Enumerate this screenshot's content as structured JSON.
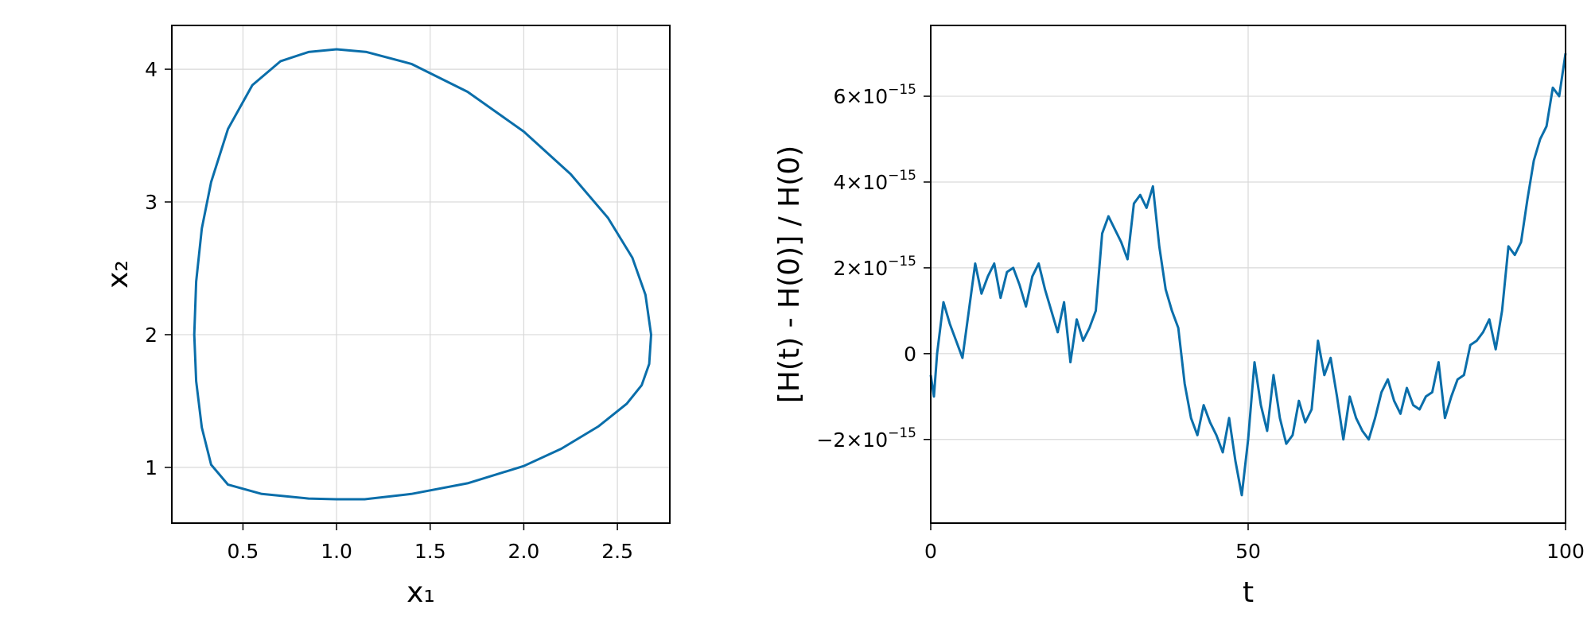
{
  "colors": {
    "series": "#0a6eaa",
    "grid": "#d9d9d9",
    "frame": "#000000"
  },
  "chart_data": [
    {
      "type": "line",
      "title": "",
      "xlabel": "x₁",
      "ylabel": "x₂",
      "xlim": [
        0.12,
        2.78
      ],
      "ylim": [
        0.58,
        4.33
      ],
      "grid": true,
      "xticks": [
        0.5,
        1.0,
        1.5,
        2.0,
        2.5
      ],
      "xtick_labels": [
        "0.5",
        "1.0",
        "1.5",
        "2.0",
        "2.5"
      ],
      "yticks": [
        1,
        2,
        3,
        4
      ],
      "ytick_labels": [
        "1",
        "2",
        "3",
        "4"
      ],
      "series": [
        {
          "x": [
            1.0,
            1.16,
            1.4,
            1.7,
            2.0,
            2.25,
            2.45,
            2.58,
            2.65,
            2.68,
            2.67,
            2.63,
            2.55,
            2.4,
            2.2,
            2.0,
            1.7,
            1.4,
            1.15,
            1.0,
            0.85,
            0.6,
            0.42,
            0.33,
            0.28,
            0.25,
            0.24,
            0.25,
            0.28,
            0.33,
            0.42,
            0.55,
            0.7,
            0.85,
            1.0
          ],
          "y": [
            4.15,
            4.13,
            4.04,
            3.83,
            3.53,
            3.21,
            2.88,
            2.58,
            2.3,
            2.0,
            1.78,
            1.62,
            1.48,
            1.31,
            1.14,
            1.01,
            0.88,
            0.8,
            0.76,
            0.76,
            0.765,
            0.8,
            0.87,
            1.02,
            1.3,
            1.65,
            2.0,
            2.4,
            2.8,
            3.15,
            3.55,
            3.88,
            4.06,
            4.13,
            4.15
          ]
        }
      ]
    },
    {
      "type": "line",
      "title": "",
      "xlabel": "t",
      "ylabel": "[H(t) - H(0)] / H(0)",
      "xlim": [
        0,
        100
      ],
      "ylim": [
        -3.95e-15,
        7.65e-15
      ],
      "grid": true,
      "xticks": [
        0,
        50,
        100
      ],
      "xtick_labels": [
        "0",
        "50",
        "100"
      ],
      "yticks": [
        -2e-15,
        0,
        2e-15,
        4e-15,
        6e-15
      ],
      "ytick_labels": [
        {
          "mantissa": "−2×10",
          "exponent": "−15"
        },
        {
          "mantissa": "0",
          "exponent": ""
        },
        {
          "mantissa": "2×10",
          "exponent": "−15"
        },
        {
          "mantissa": "4×10",
          "exponent": "−15"
        },
        {
          "mantissa": "6×10",
          "exponent": "−15"
        }
      ],
      "series": [
        {
          "x": [
            0,
            0.5,
            1,
            2,
            3,
            4,
            5,
            6,
            7,
            8,
            9,
            10,
            11,
            12,
            13,
            14,
            15,
            16,
            17,
            18,
            19,
            20,
            21,
            22,
            23,
            24,
            25,
            26,
            27,
            28,
            29,
            30,
            31,
            32,
            33,
            34,
            35,
            36,
            37,
            38,
            39,
            40,
            41,
            42,
            43,
            44,
            45,
            46,
            47,
            48,
            49,
            50,
            51,
            52,
            53,
            54,
            55,
            56,
            57,
            58,
            59,
            60,
            61,
            62,
            63,
            64,
            65,
            66,
            67,
            68,
            69,
            70,
            71,
            72,
            73,
            74,
            75,
            76,
            77,
            78,
            79,
            80,
            81,
            82,
            83,
            84,
            85,
            86,
            87,
            88,
            89,
            90,
            91,
            92,
            93,
            94,
            95,
            96,
            97,
            98,
            99,
            100
          ],
          "y": [
            -0.5,
            -1.0,
            0.0,
            1.2,
            0.7,
            0.3,
            -0.1,
            1.0,
            2.1,
            1.4,
            1.8,
            2.1,
            1.3,
            1.9,
            2.0,
            1.6,
            1.1,
            1.8,
            2.1,
            1.5,
            1.0,
            0.5,
            1.2,
            -0.2,
            0.8,
            0.3,
            0.6,
            1.0,
            2.8,
            3.2,
            2.9,
            2.6,
            2.2,
            3.5,
            3.7,
            3.4,
            3.9,
            2.5,
            1.5,
            1.0,
            0.6,
            -0.7,
            -1.5,
            -1.9,
            -1.2,
            -1.6,
            -1.9,
            -2.3,
            -1.5,
            -2.5,
            -3.3,
            -2.0,
            -0.2,
            -1.2,
            -1.8,
            -0.5,
            -1.5,
            -2.1,
            -1.9,
            -1.1,
            -1.6,
            -1.3,
            0.3,
            -0.5,
            -0.1,
            -1.0,
            -2.0,
            -1.0,
            -1.5,
            -1.8,
            -2.0,
            -1.5,
            -0.9,
            -0.6,
            -1.1,
            -1.4,
            -0.8,
            -1.2,
            -1.3,
            -1.0,
            -0.9,
            -0.2,
            -1.5,
            -1.0,
            -0.6,
            -0.5,
            0.2,
            0.3,
            0.5,
            0.8,
            0.1,
            1.0,
            2.5,
            2.3,
            2.6,
            3.6,
            4.5,
            5.0,
            5.3,
            6.2,
            6.0,
            7.0
          ]
        }
      ]
    }
  ]
}
